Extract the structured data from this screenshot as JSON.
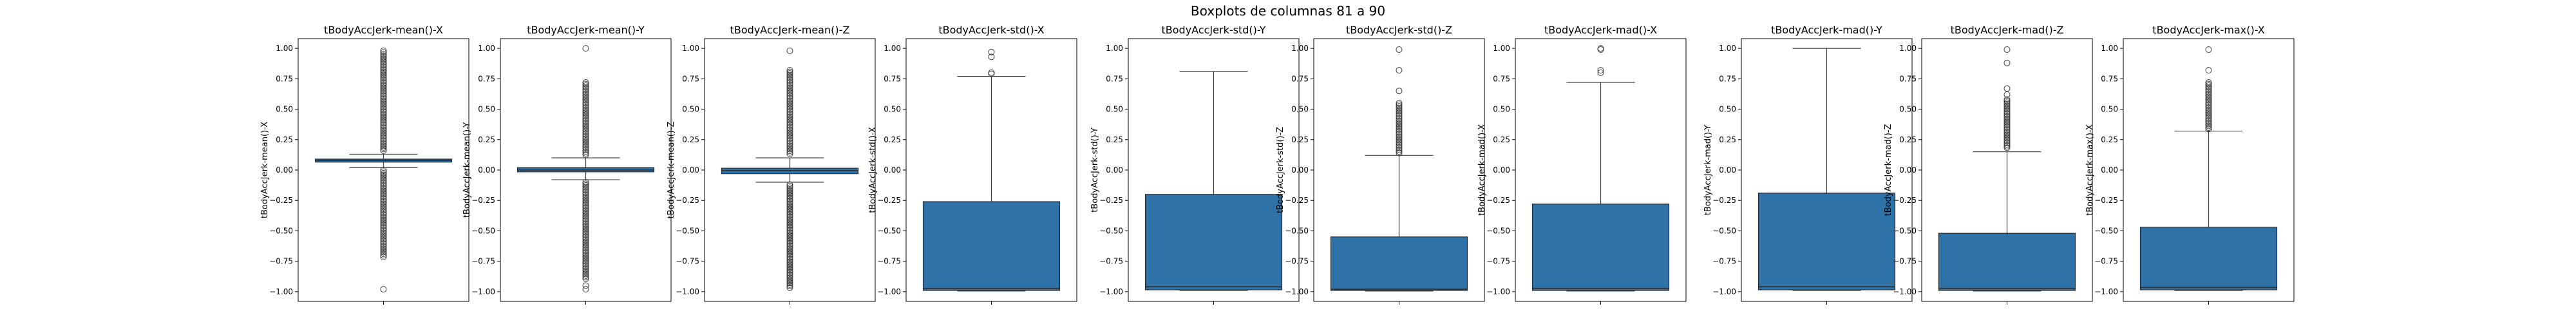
{
  "title": "Boxplots de columnas 81 a 90",
  "chart_data": {
    "type": "box",
    "title": "Boxplots de columnas 81 a 90",
    "ylim": [
      -1.08,
      1.08
    ],
    "yticks": [
      -1.0,
      -0.75,
      -0.5,
      -0.25,
      0.0,
      0.25,
      0.5,
      0.75,
      1.0
    ],
    "ytick_labels": [
      "−1.00",
      "−0.75",
      "−0.50",
      "−0.25",
      "0.00",
      "0.25",
      "0.50",
      "0.75",
      "1.00"
    ],
    "color": "#2f72a8",
    "panels": [
      {
        "name": "tBodyAccJerk-mean()-X",
        "ylabel": "tBodyAccJerk-mean()-X",
        "whisker_low": 0.02,
        "q1": 0.065,
        "median": 0.078,
        "q3": 0.09,
        "whisker_high": 0.13,
        "outliers_high": [
          0.15,
          0.98
        ],
        "outliers_low": [
          -0.0,
          -0.72
        ],
        "extra_outliers": [
          -0.98
        ]
      },
      {
        "name": "tBodyAccJerk-mean()-Y",
        "ylabel": "tBodyAccJerk-mean()-Y",
        "whisker_low": -0.08,
        "q1": -0.015,
        "median": 0.0,
        "q3": 0.02,
        "whisker_high": 0.1,
        "outliers_high": [
          0.12,
          0.72
        ],
        "outliers_low": [
          -0.1,
          -0.9
        ],
        "extra_outliers": [
          1.0,
          -0.95,
          -0.98
        ]
      },
      {
        "name": "tBodyAccJerk-mean()-Z",
        "ylabel": "tBodyAccJerk-mean()-Z",
        "whisker_low": -0.1,
        "q1": -0.03,
        "median": -0.005,
        "q3": 0.015,
        "whisker_high": 0.1,
        "outliers_high": [
          0.12,
          0.82
        ],
        "outliers_low": [
          -0.12,
          -0.97
        ],
        "extra_outliers": [
          0.98
        ]
      },
      {
        "name": "tBodyAccJerk-std()-X",
        "ylabel": "tBodyAccJerk-std()-X",
        "whisker_low": -0.995,
        "q1": -0.99,
        "median": -0.975,
        "q3": -0.26,
        "whisker_high": 0.77,
        "outliers_high": [],
        "outliers_low": [],
        "extra_outliers": [
          0.79,
          0.8,
          0.93,
          0.97
        ]
      },
      {
        "name": "tBodyAccJerk-std()-Y",
        "ylabel": "tBodyAccJerk-std()-Y",
        "whisker_low": -0.99,
        "q1": -0.985,
        "median": -0.96,
        "q3": -0.2,
        "whisker_high": 0.81,
        "outliers_high": [],
        "outliers_low": [],
        "extra_outliers": []
      },
      {
        "name": "tBodyAccJerk-std()-Z",
        "ylabel": "tBodyAccJerk-std()-Z",
        "whisker_low": -0.995,
        "q1": -0.99,
        "median": -0.98,
        "q3": -0.55,
        "whisker_high": 0.12,
        "outliers_high": [
          0.13,
          0.55
        ],
        "outliers_low": [],
        "extra_outliers": [
          0.65,
          0.82,
          0.99
        ]
      },
      {
        "name": "tBodyAccJerk-mad()-X",
        "ylabel": "tBodyAccJerk-mad()-X",
        "whisker_low": -0.995,
        "q1": -0.99,
        "median": -0.975,
        "q3": -0.28,
        "whisker_high": 0.72,
        "outliers_high": [],
        "outliers_low": [],
        "extra_outliers": [
          0.8,
          0.82,
          0.99,
          1.0
        ]
      },
      {
        "name": "tBodyAccJerk-mad()-Y",
        "ylabel": "tBodyAccJerk-mad()-Y",
        "whisker_low": -0.99,
        "q1": -0.985,
        "median": -0.96,
        "q3": -0.19,
        "whisker_high": 1.0,
        "outliers_high": [],
        "outliers_low": [],
        "extra_outliers": []
      },
      {
        "name": "tBodyAccJerk-mad()-Z",
        "ylabel": "tBodyAccJerk-mad()-Z",
        "whisker_low": -0.995,
        "q1": -0.99,
        "median": -0.975,
        "q3": -0.52,
        "whisker_high": 0.15,
        "outliers_high": [
          0.17,
          0.58
        ],
        "outliers_low": [],
        "extra_outliers": [
          0.62,
          0.67,
          0.88,
          0.99
        ]
      },
      {
        "name": "tBodyAccJerk-max()-X",
        "ylabel": "tBodyAccJerk-max()-X",
        "whisker_low": -0.99,
        "q1": -0.985,
        "median": -0.965,
        "q3": -0.47,
        "whisker_high": 0.32,
        "outliers_high": [
          0.33,
          0.72
        ],
        "outliers_low": [],
        "extra_outliers": [
          0.82,
          0.99
        ]
      }
    ]
  }
}
